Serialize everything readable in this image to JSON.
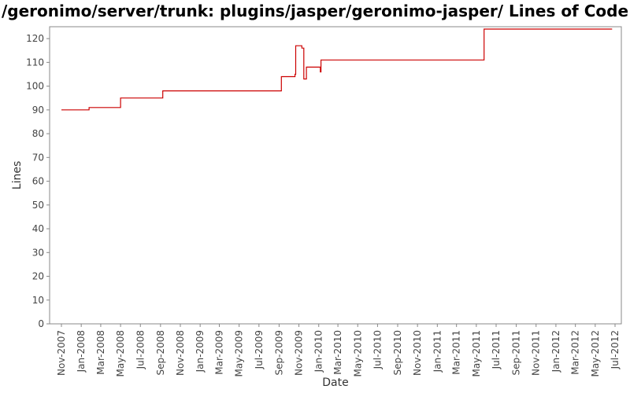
{
  "chart_data": {
    "type": "line",
    "title": "/geronimo/server/trunk: plugins/jasper/geronimo-jasper/ Lines of Code",
    "xlabel": "Date",
    "ylabel": "Lines",
    "ylim": [
      0,
      125
    ],
    "yticks": [
      0,
      10,
      20,
      30,
      40,
      50,
      60,
      70,
      80,
      90,
      100,
      110,
      120
    ],
    "xticks": [
      "Nov-2007",
      "Jan-2008",
      "Mar-2008",
      "May-2008",
      "Jul-2008",
      "Sep-2008",
      "Nov-2008",
      "Jan-2009",
      "Mar-2009",
      "May-2009",
      "Jul-2009",
      "Sep-2009",
      "Nov-2009",
      "Jan-2010",
      "Mar-2010",
      "May-2010",
      "Jul-2010",
      "Sep-2010",
      "Nov-2010",
      "Jan-2011",
      "Mar-2011",
      "May-2011",
      "Jul-2011",
      "Sep-2011",
      "Nov-2011",
      "Jan-2012",
      "Mar-2012",
      "May-2012",
      "Jul-2012"
    ],
    "grid": false,
    "line_color": "#cc0000",
    "series": [
      {
        "step": "post",
        "points": [
          [
            "2007-11-01",
            90
          ],
          [
            "2008-01-25",
            91
          ],
          [
            "2008-05-01",
            95
          ],
          [
            "2008-09-08",
            98
          ],
          [
            "2009-09-08",
            104
          ],
          [
            "2009-10-20",
            105
          ],
          [
            "2009-10-22",
            117
          ],
          [
            "2009-11-10",
            116
          ],
          [
            "2009-11-16",
            103
          ],
          [
            "2009-11-24",
            108
          ],
          [
            "2010-01-06",
            106
          ],
          [
            "2010-01-08",
            111
          ],
          [
            "2011-05-25",
            124
          ],
          [
            "2012-06-22",
            124
          ]
        ]
      }
    ]
  }
}
